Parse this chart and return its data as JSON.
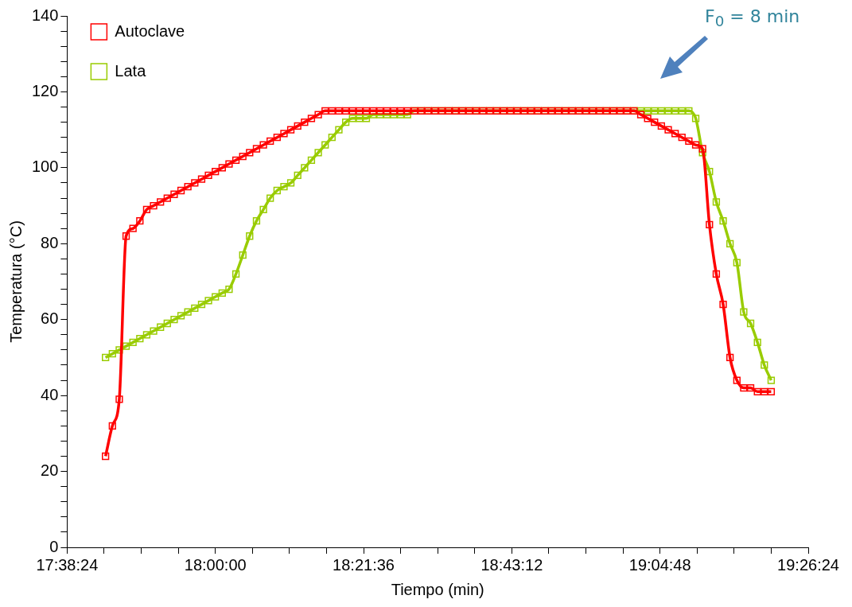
{
  "chart_data": {
    "type": "line",
    "xlabel": "Tiempo (min)",
    "ylabel": "Temperatura (°C)",
    "annotations": [
      "F$_{0}$ = 8 min"
    ],
    "x": [
      17.7333,
      17.75,
      17.7667,
      17.7833,
      17.8,
      17.8167,
      17.8333,
      17.85,
      17.8667,
      17.8833,
      17.9,
      17.9167,
      17.9333,
      17.95,
      17.9667,
      17.9833,
      18.0,
      18.0167,
      18.0333,
      18.05,
      18.0667,
      18.0833,
      18.1,
      18.1167,
      18.1333,
      18.15,
      18.1667,
      18.1833,
      18.2,
      18.2167,
      18.2333,
      18.25,
      18.2667,
      18.2833,
      18.3,
      18.3167,
      18.3333,
      18.35,
      18.3667,
      18.3833,
      18.4,
      18.4167,
      18.4333,
      18.45,
      18.4667,
      18.4833,
      18.5,
      18.5167,
      18.5333,
      18.55,
      18.5667,
      18.5833,
      18.6,
      18.6167,
      18.6333,
      18.65,
      18.6667,
      18.6833,
      18.7,
      18.7167,
      18.7333,
      18.75,
      18.7667,
      18.7833,
      18.8,
      18.8167,
      18.8333,
      18.85,
      18.8667,
      18.8833,
      18.9,
      18.9167,
      18.9333,
      18.95,
      18.9667,
      18.9833,
      19.0,
      19.0167,
      19.0333,
      19.05,
      19.0667,
      19.0833,
      19.1,
      19.1167,
      19.1333,
      19.15,
      19.1667,
      19.1833,
      19.2,
      19.2167,
      19.2333,
      19.25,
      19.2667,
      19.2833,
      19.3,
      19.3167,
      19.3333,
      19.35
    ],
    "series": [
      {
        "name": "Autoclave",
        "color": "#ff0000",
        "values": [
          24,
          32,
          39,
          82,
          84,
          86,
          89,
          90,
          91,
          92,
          93,
          94,
          95,
          96,
          97,
          98,
          99,
          100,
          101,
          102,
          103,
          104,
          105,
          106,
          107,
          108,
          109,
          110,
          111,
          112,
          113,
          114,
          115,
          115,
          115,
          115,
          115,
          115,
          115,
          115,
          115,
          115,
          115,
          115,
          115,
          115,
          115,
          115,
          115,
          115,
          115,
          115,
          115,
          115,
          115,
          115,
          115,
          115,
          115,
          115,
          115,
          115,
          115,
          115,
          115,
          115,
          115,
          115,
          115,
          115,
          115,
          115,
          115,
          115,
          115,
          115,
          115,
          115,
          114,
          113,
          112,
          111,
          110,
          109,
          108,
          107,
          106,
          105,
          85,
          72,
          64,
          50,
          44,
          42,
          42,
          41,
          41,
          41
        ]
      },
      {
        "name": "Lata",
        "color": "#99cc00",
        "values": [
          50,
          51,
          52,
          53,
          54,
          55,
          56,
          57,
          58,
          59,
          60,
          61,
          62,
          63,
          64,
          65,
          66,
          67,
          68,
          72,
          77,
          82,
          86,
          89,
          92,
          94,
          95,
          96,
          98,
          100,
          102,
          104,
          106,
          108,
          110,
          112,
          113,
          113,
          113,
          114,
          114,
          114,
          114,
          114,
          114,
          115,
          115,
          115,
          115,
          115,
          115,
          115,
          115,
          115,
          115,
          115,
          115,
          115,
          115,
          115,
          115,
          115,
          115,
          115,
          115,
          115,
          115,
          115,
          115,
          115,
          115,
          115,
          115,
          115,
          115,
          115,
          115,
          115,
          115,
          115,
          115,
          115,
          115,
          115,
          115,
          115,
          113,
          104,
          99,
          91,
          86,
          80,
          75,
          62,
          59,
          54,
          48,
          44
        ]
      }
    ],
    "xlim": [
      17.64,
      19.44
    ],
    "xticks": [
      {
        "value": 17.64,
        "label": "17:38:24"
      },
      {
        "value": 17.73,
        "label": null
      },
      {
        "value": 17.82,
        "label": null
      },
      {
        "value": 17.91,
        "label": null
      },
      {
        "value": 18.0,
        "label": "18:00:00"
      },
      {
        "value": 18.09,
        "label": null
      },
      {
        "value": 18.18,
        "label": null
      },
      {
        "value": 18.27,
        "label": null
      },
      {
        "value": 18.36,
        "label": "18:21:36"
      },
      {
        "value": 18.45,
        "label": null
      },
      {
        "value": 18.54,
        "label": null
      },
      {
        "value": 18.63,
        "label": null
      },
      {
        "value": 18.72,
        "label": "18:43:12"
      },
      {
        "value": 18.81,
        "label": null
      },
      {
        "value": 18.9,
        "label": null
      },
      {
        "value": 18.99,
        "label": null
      },
      {
        "value": 19.08,
        "label": "19:04:48"
      },
      {
        "value": 19.17,
        "label": null
      },
      {
        "value": 19.26,
        "label": null
      },
      {
        "value": 19.35,
        "label": null
      },
      {
        "value": 19.44,
        "label": "19:26:24"
      }
    ],
    "ylim": [
      0,
      140
    ],
    "yticks": [
      0,
      {
        "value": 4,
        "label": null
      },
      {
        "value": 8,
        "label": null
      },
      {
        "value": 12,
        "label": null
      },
      {
        "value": 16,
        "label": null
      },
      20,
      {
        "value": 24,
        "label": null
      },
      {
        "value": 28,
        "label": null
      },
      {
        "value": 32,
        "label": null
      },
      {
        "value": 36,
        "label": null
      },
      40,
      {
        "value": 44,
        "label": null
      },
      {
        "value": 48,
        "label": null
      },
      {
        "value": 52,
        "label": null
      },
      {
        "value": 56,
        "label": null
      },
      60,
      {
        "value": 64,
        "label": null
      },
      {
        "value": 68,
        "label": null
      },
      {
        "value": 72,
        "label": null
      },
      {
        "value": 76,
        "label": null
      },
      80,
      {
        "value": 84,
        "label": null
      },
      {
        "value": 88,
        "label": null
      },
      {
        "value": 92,
        "label": null
      },
      {
        "value": 96,
        "label": null
      },
      100,
      {
        "value": 104,
        "label": null
      },
      {
        "value": 108,
        "label": null
      },
      {
        "value": 112,
        "label": null
      },
      {
        "value": 116,
        "label": null
      },
      120,
      {
        "value": 124,
        "label": null
      },
      {
        "value": 128,
        "label": null
      },
      {
        "value": 132,
        "label": null
      },
      {
        "value": 136,
        "label": null
      },
      140
    ],
    "grid": false,
    "legend": "top left",
    "marker": "square",
    "line_style": "solid"
  }
}
